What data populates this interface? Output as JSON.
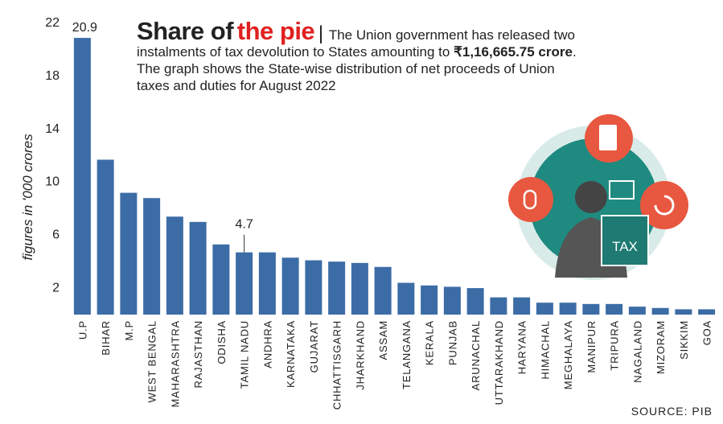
{
  "chart_data": {
    "type": "bar",
    "title": [
      "Share of",
      "the pie"
    ],
    "subtitle": [
      "The Union government has released two",
      "instalments of tax devolution to States amounting to ",
      "₹1,16,665.75 crore",
      ".",
      "The graph shows the State-wise distribution of net proceeds of Union",
      "taxes and duties for August 2022"
    ],
    "y_label": "figures in '000 crores",
    "source": "SOURCE: PIB",
    "categories": [
      "U.P",
      "BIHAR",
      "M.P",
      "WEST BENGAL",
      "MAHARASHTRA",
      "RAJASTHAN",
      "ODISHA",
      "TAMIL NADU",
      "ANDHRA",
      "KARNATAKA",
      "GUJARAT",
      "CHHATTISGARH",
      "JHARKHAND",
      "ASSAM",
      "TELANGANA",
      "KERALA",
      "PUNJAB",
      "ARUNACHAL",
      "UTTARAKHAND",
      "HARYANA",
      "HIMACHAL",
      "MEGHALAYA",
      "MANIPUR",
      "TRIPURA",
      "NAGALAND",
      "MIZORAM",
      "SIKKIM",
      "GOA"
    ],
    "values": [
      20.9,
      11.7,
      9.2,
      8.8,
      7.4,
      7.0,
      5.3,
      4.7,
      4.7,
      4.3,
      4.1,
      4.0,
      3.9,
      3.6,
      2.4,
      2.2,
      2.1,
      2.0,
      1.3,
      1.3,
      0.9,
      0.9,
      0.8,
      0.8,
      0.6,
      0.5,
      0.4,
      0.4
    ],
    "value_labels": [
      "20.9",
      null,
      null,
      null,
      null,
      null,
      null,
      "4.7",
      null,
      null,
      null,
      null,
      null,
      null,
      null,
      null,
      null,
      null,
      null,
      null,
      null,
      null,
      null,
      null,
      null,
      null,
      null,
      null
    ],
    "color": "#3c6ca6",
    "ylim": [
      0,
      22
    ],
    "yticks": [
      2,
      6,
      10,
      14,
      18,
      22
    ],
    "grid": false
  }
}
